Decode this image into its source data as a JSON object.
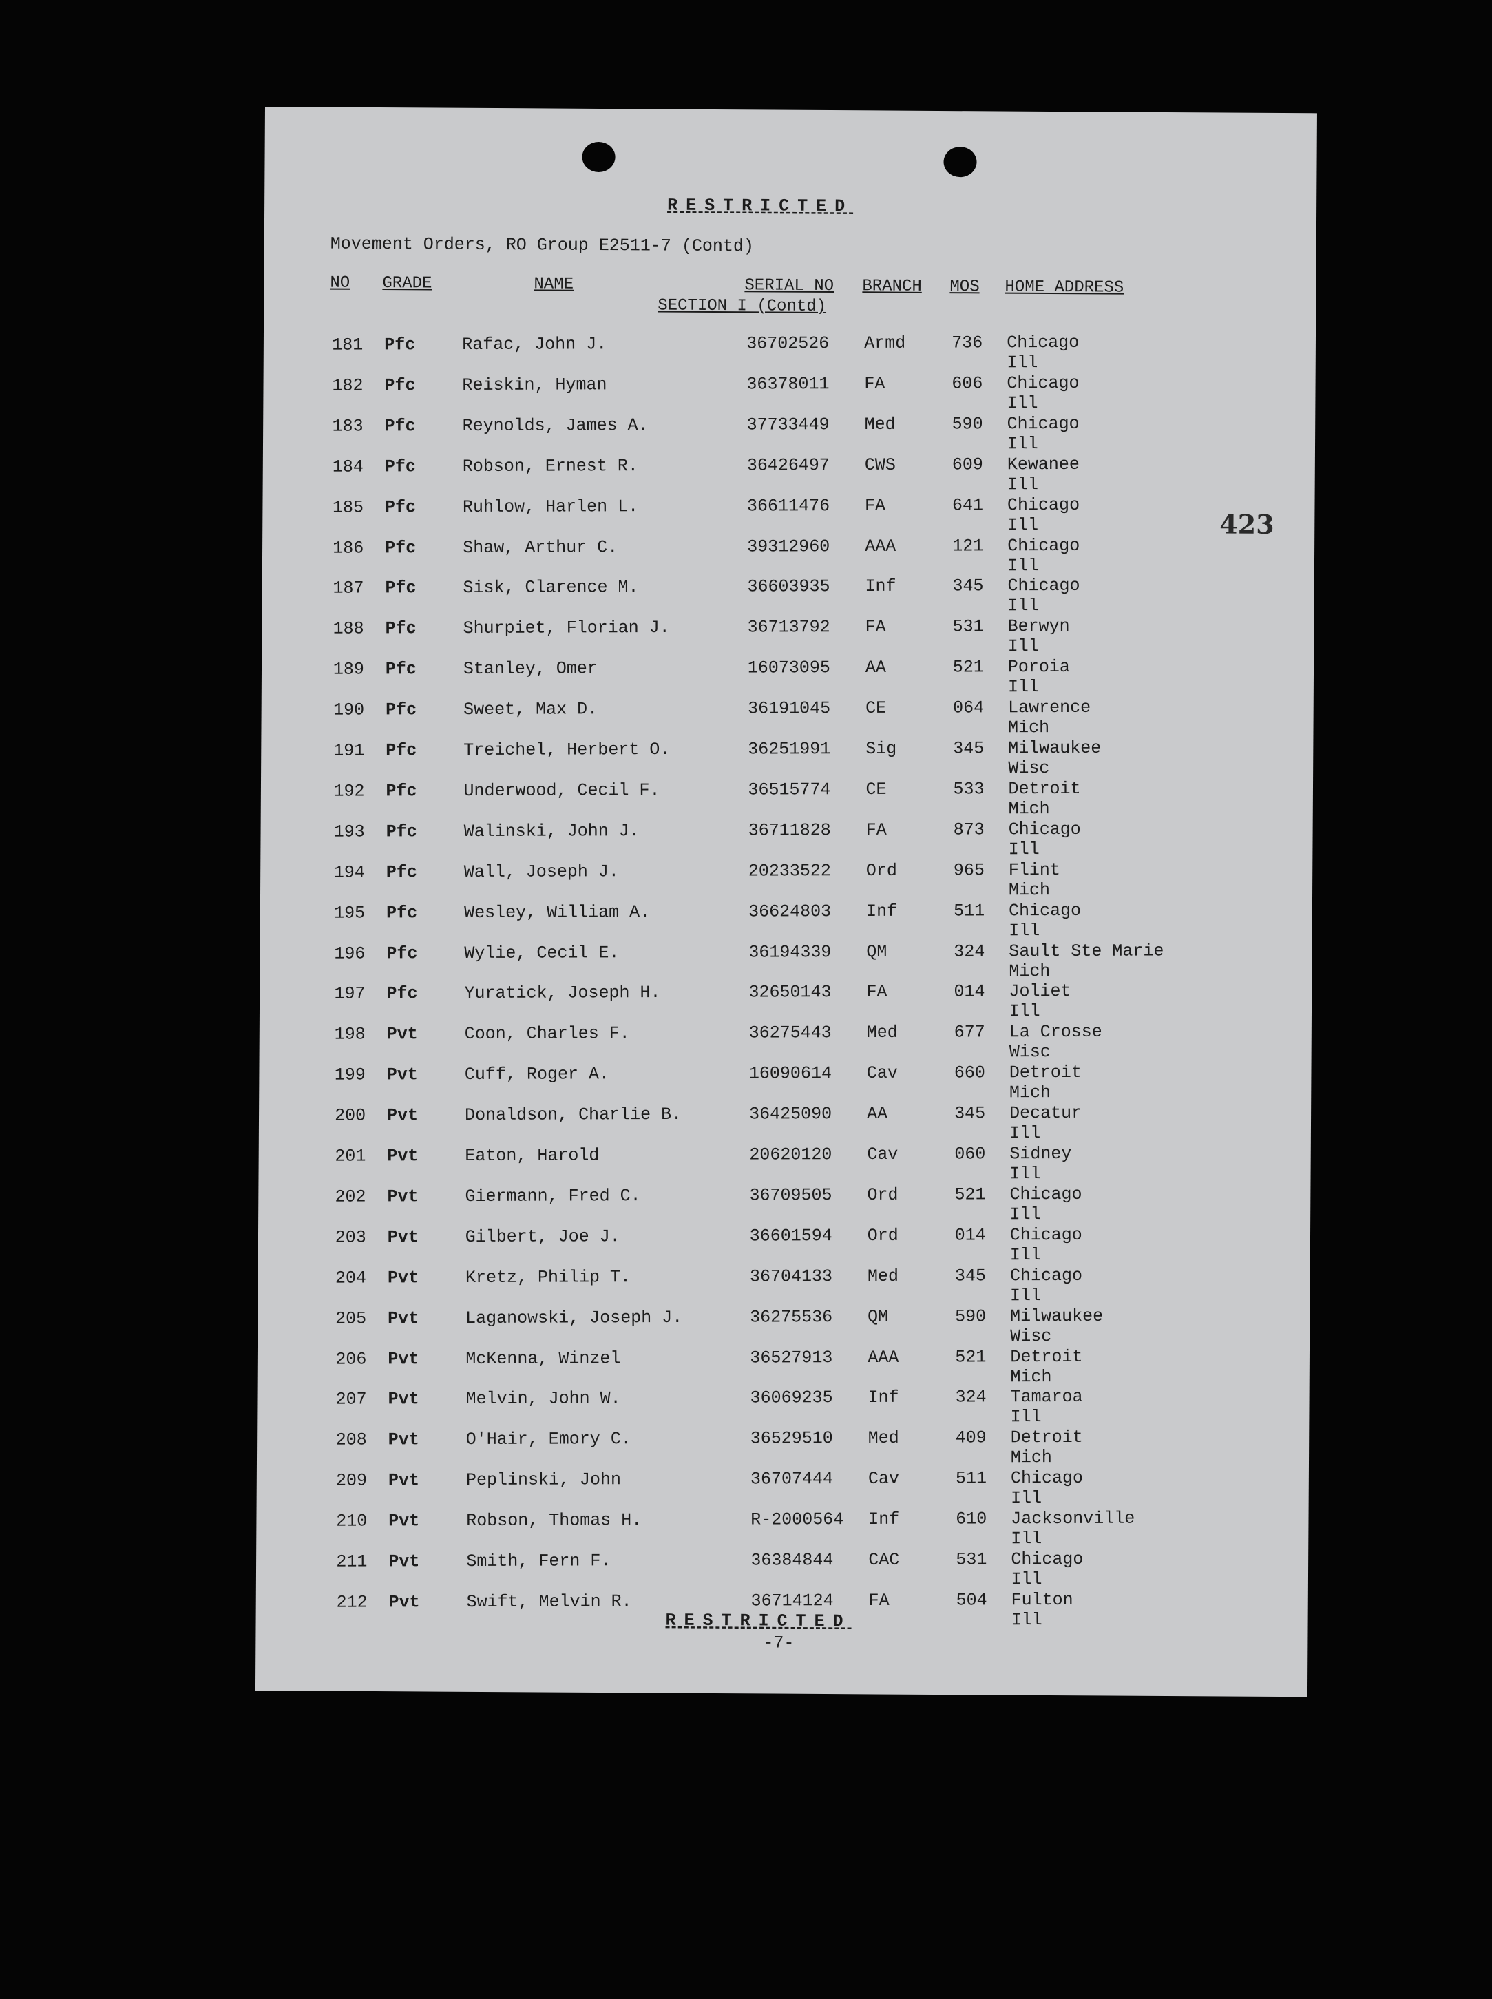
{
  "header": {
    "restricted": "RESTRICTED",
    "title": "Movement Orders, RO Group E2511-7 (Contd)",
    "columns": {
      "no": "NO",
      "grade": "GRADE",
      "name": "NAME",
      "serial": "SERIAL NO",
      "branch": "BRANCH",
      "mos": "MOS",
      "address": "HOME ADDRESS"
    },
    "section": "SECTION I (Contd)"
  },
  "stamp_number": "423",
  "rows": [
    {
      "no": "181",
      "grade": "Pfc",
      "name": "Rafac, John J.",
      "serial": "36702526",
      "branch": "Armd",
      "mos": "736",
      "city": "Chicago",
      "state": "Ill"
    },
    {
      "no": "182",
      "grade": "Pfc",
      "name": "Reiskin, Hyman",
      "serial": "36378011",
      "branch": "FA",
      "mos": "606",
      "city": "Chicago",
      "state": "Ill"
    },
    {
      "no": "183",
      "grade": "Pfc",
      "name": "Reynolds, James A.",
      "serial": "37733449",
      "branch": "Med",
      "mos": "590",
      "city": "Chicago",
      "state": "Ill"
    },
    {
      "no": "184",
      "grade": "Pfc",
      "name": "Robson, Ernest R.",
      "serial": "36426497",
      "branch": "CWS",
      "mos": "609",
      "city": "Kewanee",
      "state": "Ill"
    },
    {
      "no": "185",
      "grade": "Pfc",
      "name": "Ruhlow, Harlen L.",
      "serial": "36611476",
      "branch": "FA",
      "mos": "641",
      "city": "Chicago",
      "state": "Ill"
    },
    {
      "no": "186",
      "grade": "Pfc",
      "name": "Shaw, Arthur C.",
      "serial": "39312960",
      "branch": "AAA",
      "mos": "121",
      "city": "Chicago",
      "state": "Ill"
    },
    {
      "no": "187",
      "grade": "Pfc",
      "name": "Sisk, Clarence M.",
      "serial": "36603935",
      "branch": "Inf",
      "mos": "345",
      "city": "Chicago",
      "state": "Ill"
    },
    {
      "no": "188",
      "grade": "Pfc",
      "name": "Shurpiet, Florian J.",
      "serial": "36713792",
      "branch": "FA",
      "mos": "531",
      "city": "Berwyn",
      "state": "Ill"
    },
    {
      "no": "189",
      "grade": "Pfc",
      "name": "Stanley, Omer",
      "serial": "16073095",
      "branch": "AA",
      "mos": "521",
      "city": "Poroia",
      "state": "Ill"
    },
    {
      "no": "190",
      "grade": "Pfc",
      "name": "Sweet, Max D.",
      "serial": "36191045",
      "branch": "CE",
      "mos": "064",
      "city": "Lawrence",
      "state": "Mich"
    },
    {
      "no": "191",
      "grade": "Pfc",
      "name": "Treichel, Herbert O.",
      "serial": "36251991",
      "branch": "Sig",
      "mos": "345",
      "city": "Milwaukee",
      "state": "Wisc"
    },
    {
      "no": "192",
      "grade": "Pfc",
      "name": "Underwood, Cecil F.",
      "serial": "36515774",
      "branch": "CE",
      "mos": "533",
      "city": "Detroit",
      "state": "Mich"
    },
    {
      "no": "193",
      "grade": "Pfc",
      "name": "Walinski, John J.",
      "serial": "36711828",
      "branch": "FA",
      "mos": "873",
      "city": "Chicago",
      "state": "Ill"
    },
    {
      "no": "194",
      "grade": "Pfc",
      "name": "Wall, Joseph J.",
      "serial": "20233522",
      "branch": "Ord",
      "mos": "965",
      "city": "Flint",
      "state": "Mich"
    },
    {
      "no": "195",
      "grade": "Pfc",
      "name": "Wesley, William A.",
      "serial": "36624803",
      "branch": "Inf",
      "mos": "511",
      "city": "Chicago",
      "state": "Ill"
    },
    {
      "no": "196",
      "grade": "Pfc",
      "name": "Wylie, Cecil E.",
      "serial": "36194339",
      "branch": "QM",
      "mos": "324",
      "city": "Sault Ste Marie",
      "state": "Mich"
    },
    {
      "no": "197",
      "grade": "Pfc",
      "name": "Yuratick, Joseph H.",
      "serial": "32650143",
      "branch": "FA",
      "mos": "014",
      "city": "Joliet",
      "state": "Ill"
    },
    {
      "no": "198",
      "grade": "Pvt",
      "name": "Coon, Charles F.",
      "serial": "36275443",
      "branch": "Med",
      "mos": "677",
      "city": "La Crosse",
      "state": "Wisc"
    },
    {
      "no": "199",
      "grade": "Pvt",
      "name": "Cuff, Roger A.",
      "serial": "16090614",
      "branch": "Cav",
      "mos": "660",
      "city": "Detroit",
      "state": "Mich"
    },
    {
      "no": "200",
      "grade": "Pvt",
      "name": "Donaldson, Charlie B.",
      "serial": "36425090",
      "branch": "AA",
      "mos": "345",
      "city": "Decatur",
      "state": "Ill"
    },
    {
      "no": "201",
      "grade": "Pvt",
      "name": "Eaton, Harold",
      "serial": "20620120",
      "branch": "Cav",
      "mos": "060",
      "city": "Sidney",
      "state": "Ill"
    },
    {
      "no": "202",
      "grade": "Pvt",
      "name": "Giermann, Fred C.",
      "serial": "36709505",
      "branch": "Ord",
      "mos": "521",
      "city": "Chicago",
      "state": "Ill"
    },
    {
      "no": "203",
      "grade": "Pvt",
      "name": "Gilbert, Joe J.",
      "serial": "36601594",
      "branch": "Ord",
      "mos": "014",
      "city": "Chicago",
      "state": "Ill"
    },
    {
      "no": "204",
      "grade": "Pvt",
      "name": "Kretz, Philip T.",
      "serial": "36704133",
      "branch": "Med",
      "mos": "345",
      "city": "Chicago",
      "state": "Ill"
    },
    {
      "no": "205",
      "grade": "Pvt",
      "name": "Laganowski, Joseph J.",
      "serial": "36275536",
      "branch": "QM",
      "mos": "590",
      "city": "Milwaukee",
      "state": "Wisc"
    },
    {
      "no": "206",
      "grade": "Pvt",
      "name": "McKenna, Winzel",
      "serial": "36527913",
      "branch": "AAA",
      "mos": "521",
      "city": "Detroit",
      "state": "Mich"
    },
    {
      "no": "207",
      "grade": "Pvt",
      "name": "Melvin, John W.",
      "serial": "36069235",
      "branch": "Inf",
      "mos": "324",
      "city": "Tamaroa",
      "state": "Ill"
    },
    {
      "no": "208",
      "grade": "Pvt",
      "name": "O'Hair, Emory C.",
      "serial": "36529510",
      "branch": "Med",
      "mos": "409",
      "city": "Detroit",
      "state": "Mich"
    },
    {
      "no": "209",
      "grade": "Pvt",
      "name": "Peplinski, John",
      "serial": "36707444",
      "branch": "Cav",
      "mos": "511",
      "city": "Chicago",
      "state": "Ill"
    },
    {
      "no": "210",
      "grade": "Pvt",
      "name": "Robson, Thomas H.",
      "serial": "R-2000564",
      "branch": "Inf",
      "mos": "610",
      "city": "Jacksonville",
      "state": "Ill"
    },
    {
      "no": "211",
      "grade": "Pvt",
      "name": "Smith, Fern F.",
      "serial": "36384844",
      "branch": "CAC",
      "mos": "531",
      "city": "Chicago",
      "state": "Ill"
    },
    {
      "no": "212",
      "grade": "Pvt",
      "name": "Swift, Melvin R.",
      "serial": "36714124",
      "branch": "FA",
      "mos": "504",
      "city": "Fulton",
      "state": "Ill"
    }
  ],
  "footer": {
    "restricted": "RESTRICTED",
    "page": "-7-"
  }
}
